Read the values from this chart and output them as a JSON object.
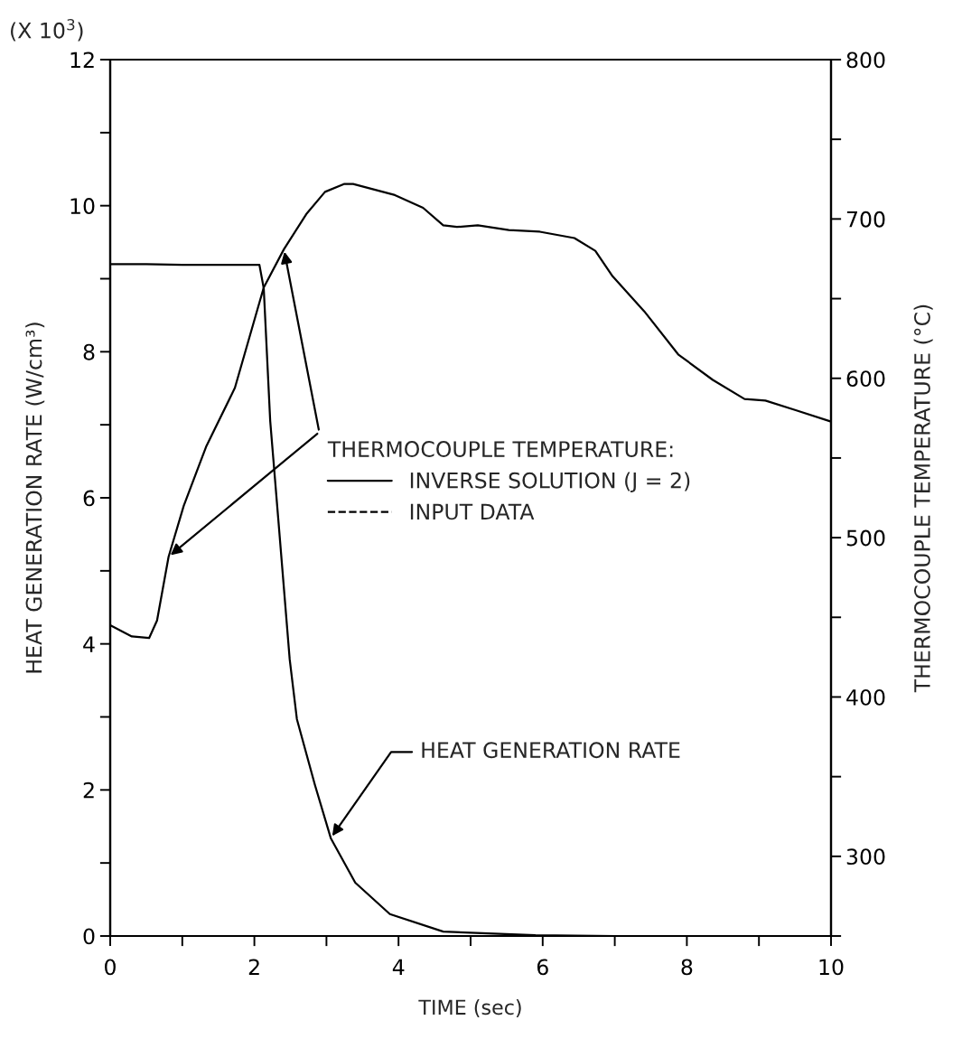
{
  "chart_data": {
    "type": "line",
    "xlabel": "TIME (sec)",
    "ylabel": "HEAT GENERATION RATE (W/cm³)",
    "y2label": "THERMOCOUPLE TEMPERATURE (°C)",
    "legend_title": "THERMOCOUPLE TEMPERATURE:",
    "legend": "right",
    "annotations": [
      "(X 10$^{3}$)",
      {
        "text": "HEAT GENERATION RATE",
        "x": 3.06,
        "y": 1.34
      }
    ],
    "xlim": [
      0,
      10
    ],
    "xticks": [
      0,
      {
        "value": 1,
        "label": null
      },
      2,
      {
        "value": 3,
        "label": null
      },
      4,
      {
        "value": 5,
        "label": null
      },
      6,
      {
        "value": 7,
        "label": null
      },
      8,
      {
        "value": 9,
        "label": null
      },
      10
    ],
    "ylim": [
      0,
      12
    ],
    "yticks": [
      0,
      {
        "value": 1,
        "label": null
      },
      2,
      {
        "value": 3,
        "label": null
      },
      4,
      {
        "value": 5,
        "label": null
      },
      6,
      {
        "value": 7,
        "label": null
      },
      8,
      {
        "value": 9,
        "label": null
      },
      10,
      {
        "value": 11,
        "label": null
      },
      12
    ],
    "y2lim": [
      250,
      800
    ],
    "y2ticks": [
      {
        "value": 250,
        "label": null
      },
      300,
      {
        "value": 350,
        "label": null
      },
      400,
      {
        "value": 450,
        "label": null
      },
      500,
      {
        "value": 550,
        "label": null
      },
      600,
      {
        "value": 650,
        "label": null
      },
      700,
      {
        "value": 750,
        "label": null
      },
      800
    ],
    "grid": false,
    "marker": "none",
    "series": [
      {
        "color": "#000000",
        "line_style": "solid",
        "x": [
          0,
          0.5,
          1.0,
          1.5,
          2.07,
          2.13,
          2.22,
          2.33,
          2.49,
          2.59,
          2.84,
          3.06,
          3.4,
          3.88,
          4.62,
          5.9,
          7,
          8,
          9,
          10
        ],
        "values": [
          9.2,
          9.2,
          9.19,
          9.19,
          9.19,
          8.87,
          7.05,
          5.73,
          3.79,
          2.97,
          2.07,
          1.34,
          0.73,
          0.3,
          0.06,
          0.01,
          0,
          0,
          0,
          0
        ]
      },
      {
        "name": "INVERSE SOLUTION (J = 2)",
        "color": "#000000",
        "line_style": "solid",
        "axis": "y2",
        "x": [
          0,
          0.3,
          0.54,
          0.65,
          0.81,
          1.02,
          1.33,
          1.73,
          2.13,
          2.41,
          2.72,
          2.98,
          3.25,
          3.37,
          3.95,
          4.34,
          4.62,
          4.81,
          5.1,
          5.53,
          5.96,
          6.44,
          6.73,
          6.97,
          7.41,
          7.88,
          8.36,
          8.8,
          9.09,
          9.51,
          9.99
        ],
        "values": [
          445,
          438,
          437,
          448,
          488,
          520,
          557,
          594,
          657,
          681,
          703,
          717,
          722,
          722,
          715,
          707,
          696,
          695,
          696,
          693,
          692,
          688,
          680,
          664,
          642,
          615,
          599,
          587,
          586,
          580,
          573
        ]
      },
      {
        "name": "INPUT DATA",
        "color": "#000000",
        "line_style": "dashed",
        "axis": "y2"
      }
    ]
  }
}
